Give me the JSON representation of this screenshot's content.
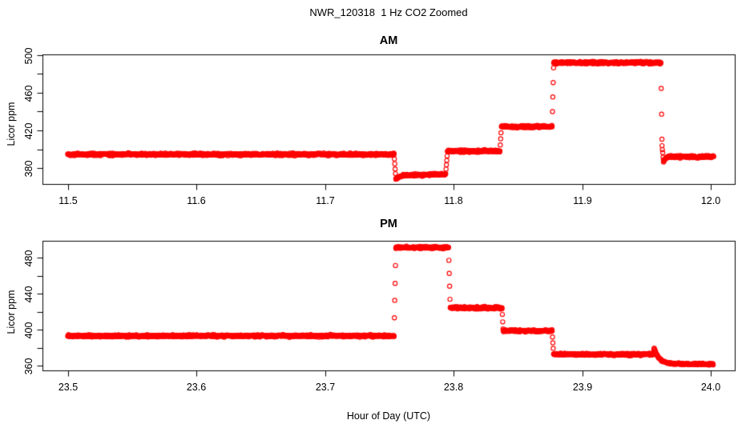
{
  "figure": {
    "title": "NWR_120318  1 Hz CO2 Zoomed",
    "xlabel": "Hour of Day (UTC)",
    "background_color": "#FFFFFF",
    "point_color": "#FF0000",
    "axis_color": "#000000",
    "marker": "open-circle"
  },
  "chart_data": [
    {
      "type": "scatter",
      "panel": "top",
      "title": "AM",
      "ylabel": "Licor ppm",
      "sample_rate_hz": 1,
      "xlim": [
        11.48005,
        12.01871
      ],
      "ylim": [
        362.98,
        500.85
      ],
      "x_ticks": [
        {
          "v": 11.5,
          "label": "11.5"
        },
        {
          "v": 11.6,
          "label": "11.6"
        },
        {
          "v": 11.7,
          "label": "11.7"
        },
        {
          "v": 11.8,
          "label": "11.8"
        },
        {
          "v": 11.9,
          "label": "11.9"
        },
        {
          "v": 12.0,
          "label": "12.0"
        }
      ],
      "y_ticks": [
        {
          "v": 380,
          "label": "380"
        },
        {
          "v": 400,
          "label": ""
        },
        {
          "v": 420,
          "label": "420"
        },
        {
          "v": 440,
          "label": ""
        },
        {
          "v": 460,
          "label": "460"
        },
        {
          "v": 480,
          "label": ""
        },
        {
          "v": 500,
          "label": "500"
        }
      ],
      "segments": [
        {
          "t0": 11.4997,
          "t1": 11.7536,
          "v0": 394.5,
          "v1": 394.5,
          "sigma": 0.6
        },
        {
          "t0": 11.7536,
          "t1": 11.755,
          "v0": 394.5,
          "v1": 368.5,
          "sigma": 0.3
        },
        {
          "t0": 11.755,
          "t1": 11.76,
          "v0": 368.5,
          "v1": 372.0,
          "sigma": 0.5
        },
        {
          "t0": 11.76,
          "t1": 11.7938,
          "v0": 372.0,
          "v1": 373.5,
          "sigma": 0.6
        },
        {
          "t0": 11.7938,
          "t1": 11.7952,
          "v0": 373.5,
          "v1": 398.0,
          "sigma": 0.3
        },
        {
          "t0": 11.7952,
          "t1": 11.836,
          "v0": 398.0,
          "v1": 398.0,
          "sigma": 0.6
        },
        {
          "t0": 11.836,
          "t1": 11.8371,
          "v0": 398.0,
          "v1": 424.0,
          "sigma": 0.3
        },
        {
          "t0": 11.8371,
          "t1": 11.8766,
          "v0": 424.0,
          "v1": 424.0,
          "sigma": 0.6
        },
        {
          "t0": 11.8766,
          "t1": 11.8778,
          "v0": 424.0,
          "v1": 492.0,
          "sigma": 0.3
        },
        {
          "t0": 11.8778,
          "t1": 11.9612,
          "v0": 492.0,
          "v1": 492.0,
          "sigma": 0.6
        },
        {
          "t0": 11.9612,
          "t1": 11.9621,
          "v0": 492.0,
          "v1": 404.0,
          "sigma": 0.3
        },
        {
          "t0": 11.9621,
          "t1": 11.9633,
          "v0": 404.0,
          "v1": 386.5,
          "sigma": 0.3
        },
        {
          "t0": 11.9633,
          "t1": 11.969,
          "v0": 386.5,
          "v1": 392.0,
          "sigma": 0.5,
          "ease": "exp"
        },
        {
          "t0": 11.969,
          "t1": 12.0025,
          "v0": 392.0,
          "v1": 392.0,
          "sigma": 0.6
        }
      ]
    },
    {
      "type": "scatter",
      "panel": "bottom",
      "title": "PM",
      "ylabel": "Licor ppm",
      "sample_rate_hz": 1,
      "xlim": [
        23.48005,
        24.01871
      ],
      "ylim": [
        354.67,
        498.67
      ],
      "x_ticks": [
        {
          "v": 23.5,
          "label": "23.5"
        },
        {
          "v": 23.6,
          "label": "23.6"
        },
        {
          "v": 23.7,
          "label": "23.7"
        },
        {
          "v": 23.8,
          "label": "23.8"
        },
        {
          "v": 23.9,
          "label": "23.9"
        },
        {
          "v": 24.0,
          "label": "24.0"
        }
      ],
      "y_ticks": [
        {
          "v": 360,
          "label": "360"
        },
        {
          "v": 380,
          "label": ""
        },
        {
          "v": 400,
          "label": "400"
        },
        {
          "v": 420,
          "label": ""
        },
        {
          "v": 440,
          "label": "440"
        },
        {
          "v": 460,
          "label": ""
        },
        {
          "v": 480,
          "label": "480"
        }
      ],
      "segments": [
        {
          "t0": 23.4997,
          "t1": 23.7536,
          "v0": 393.0,
          "v1": 393.0,
          "sigma": 0.6
        },
        {
          "t0": 23.7536,
          "t1": 23.755,
          "v0": 393.0,
          "v1": 491.5,
          "sigma": 0.3
        },
        {
          "t0": 23.755,
          "t1": 23.796,
          "v0": 491.5,
          "v1": 491.0,
          "sigma": 0.6
        },
        {
          "t0": 23.796,
          "t1": 23.7973,
          "v0": 491.0,
          "v1": 424.5,
          "sigma": 0.3
        },
        {
          "t0": 23.7973,
          "t1": 23.8376,
          "v0": 424.5,
          "v1": 424.0,
          "sigma": 0.6
        },
        {
          "t0": 23.8376,
          "t1": 23.8385,
          "v0": 424.0,
          "v1": 398.5,
          "sigma": 0.3
        },
        {
          "t0": 23.8385,
          "t1": 23.8766,
          "v0": 398.5,
          "v1": 398.5,
          "sigma": 0.6
        },
        {
          "t0": 23.8766,
          "t1": 23.8777,
          "v0": 398.5,
          "v1": 372.5,
          "sigma": 0.3
        },
        {
          "t0": 23.8777,
          "t1": 23.9552,
          "v0": 372.5,
          "v1": 372.5,
          "sigma": 0.6
        },
        {
          "t0": 23.9552,
          "t1": 23.956,
          "v0": 372.5,
          "v1": 381.0,
          "sigma": 0.3
        },
        {
          "t0": 23.956,
          "t1": 23.9725,
          "v0": 379.0,
          "v1": 362.0,
          "sigma": 0.4,
          "ease": "exp"
        },
        {
          "t0": 23.9725,
          "t1": 24.0022,
          "v0": 362.0,
          "v1": 361.5,
          "sigma": 0.5
        }
      ]
    }
  ]
}
